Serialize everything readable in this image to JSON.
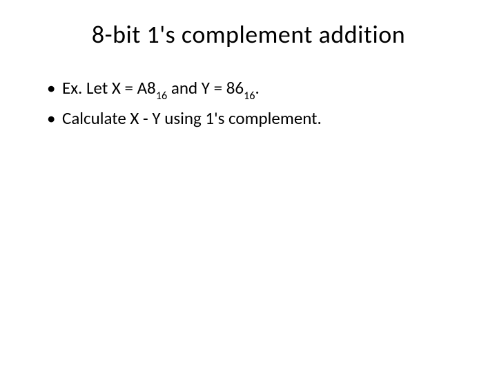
{
  "slide": {
    "title": "8-bit 1's complement addition",
    "bullets": [
      {
        "prefix": "Ex. Let X = A8",
        "sub1": "16",
        "mid": " and Y = 86",
        "sub2": "16",
        "suffix": "."
      },
      {
        "text": "Calculate X - Y using 1's complement."
      }
    ]
  },
  "colors": {
    "background": "#ffffff",
    "text": "#000000"
  },
  "typography": {
    "title_fontsize": 36,
    "body_fontsize": 25,
    "font_family": "Calibri"
  }
}
